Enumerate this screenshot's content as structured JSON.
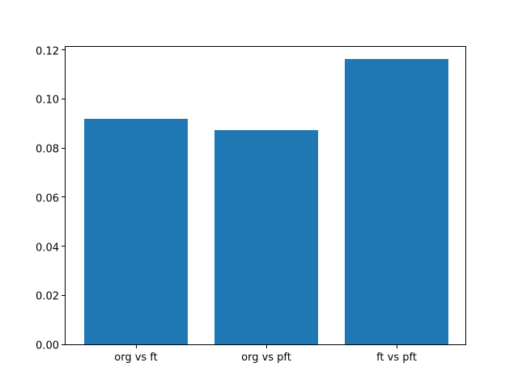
{
  "figure": {
    "background": "#ffffff",
    "frame_color": "#000000"
  },
  "chart_data": {
    "type": "bar",
    "title": "",
    "xlabel": "",
    "ylabel": "",
    "categories": [
      "org vs ft",
      "org vs pft",
      "ft vs pft"
    ],
    "values": [
      0.0917,
      0.0874,
      0.1161
    ],
    "bar_color": "#1f77b4",
    "bar_width": 0.8,
    "ylim": [
      0,
      0.1218
    ],
    "xlim": [
      -0.54,
      2.54
    ],
    "yticks": [
      0.0,
      0.02,
      0.04,
      0.06,
      0.08,
      0.1,
      0.12
    ],
    "ytick_labels": [
      "0.00",
      "0.02",
      "0.04",
      "0.06",
      "0.08",
      "0.10",
      "0.12"
    ],
    "grid": false,
    "legend_position": "none",
    "tick_color": "#000000"
  }
}
